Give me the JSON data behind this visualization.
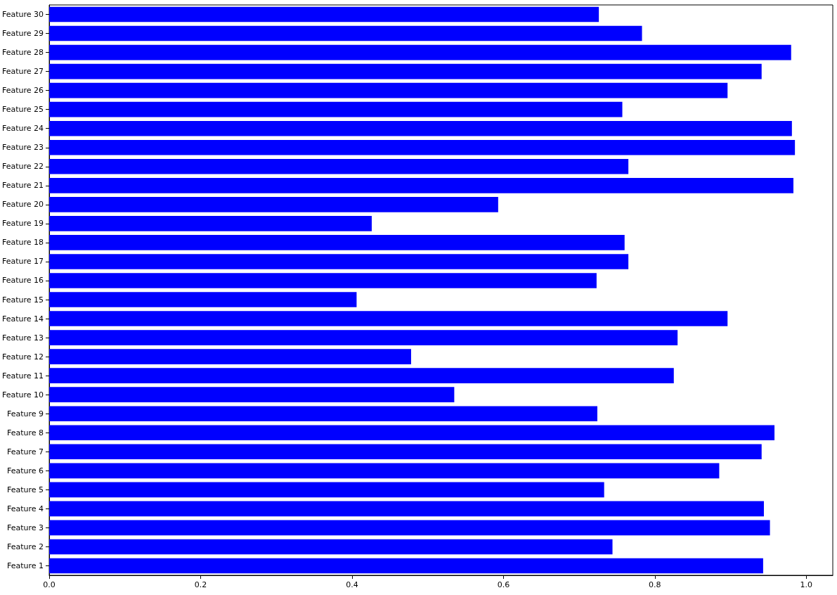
{
  "chart_data": {
    "type": "bar",
    "orientation": "horizontal",
    "color": "#0000ff",
    "categories": [
      "Feature 30",
      "Feature 29",
      "Feature 28",
      "Feature 27",
      "Feature 26",
      "Feature 25",
      "Feature 24",
      "Feature 23",
      "Feature 22",
      "Feature 21",
      "Feature 20",
      "Feature 19",
      "Feature 18",
      "Feature 17",
      "Feature 16",
      "Feature 15",
      "Feature 14",
      "Feature 13",
      "Feature 12",
      "Feature 11",
      "Feature 10",
      "Feature 9",
      "Feature 8",
      "Feature 7",
      "Feature 6",
      "Feature 5",
      "Feature 4",
      "Feature 3",
      "Feature 2",
      "Feature 1"
    ],
    "values": [
      0.726,
      0.783,
      0.98,
      0.941,
      0.896,
      0.757,
      0.981,
      0.985,
      0.765,
      0.983,
      0.593,
      0.426,
      0.76,
      0.765,
      0.723,
      0.406,
      0.896,
      0.83,
      0.478,
      0.825,
      0.535,
      0.724,
      0.958,
      0.941,
      0.885,
      0.733,
      0.944,
      0.952,
      0.744,
      0.943
    ],
    "xlim": [
      0,
      1.035
    ],
    "xticks": [
      {
        "value": 0,
        "label": "0.0"
      },
      {
        "value": 0.2,
        "label": "0.2"
      },
      {
        "value": 0.4,
        "label": "0.4"
      },
      {
        "value": 0.6,
        "label": "0.6"
      },
      {
        "value": 0.8,
        "label": "0.8"
      },
      {
        "value": 1,
        "label": "1.0"
      }
    ]
  }
}
